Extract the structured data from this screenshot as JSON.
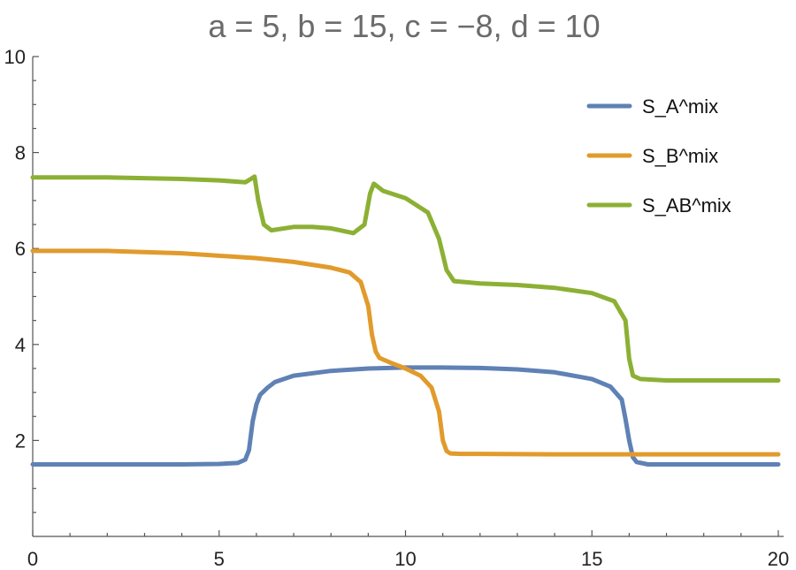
{
  "chart_data": {
    "type": "line",
    "title": "a = 5, b = 15, c = −8, d = 10",
    "xlabel": "",
    "ylabel": "",
    "xlim": [
      0,
      20
    ],
    "ylim": [
      0,
      10
    ],
    "x_ticks": [
      0,
      5,
      10,
      15,
      20
    ],
    "y_ticks": [
      2,
      4,
      6,
      8,
      10
    ],
    "grid": false,
    "legend_position": "top-right",
    "series": [
      {
        "name": "S_A^mix",
        "color": "#5f81b5",
        "x": [
          0,
          2,
          4,
          5,
          5.5,
          5.7,
          5.8,
          5.9,
          6.0,
          6.1,
          6.3,
          6.5,
          7,
          8,
          9,
          10,
          11,
          12,
          13,
          14,
          15,
          15.5,
          15.8,
          15.9,
          16.0,
          16.1,
          16.2,
          16.5,
          17,
          18,
          19,
          20
        ],
        "y": [
          1.5,
          1.5,
          1.5,
          1.51,
          1.53,
          1.6,
          1.8,
          2.4,
          2.75,
          2.95,
          3.1,
          3.22,
          3.35,
          3.45,
          3.5,
          3.52,
          3.52,
          3.51,
          3.48,
          3.42,
          3.28,
          3.12,
          2.85,
          2.45,
          2.0,
          1.65,
          1.55,
          1.5,
          1.5,
          1.5,
          1.5,
          1.5
        ]
      },
      {
        "name": "S_B^mix",
        "color": "#e19b2c",
        "x": [
          0,
          2,
          4,
          6,
          7,
          8,
          8.5,
          8.8,
          9.0,
          9.1,
          9.2,
          9.3,
          9.6,
          10,
          10.4,
          10.7,
          10.9,
          11.0,
          11.1,
          11.2,
          11.5,
          12,
          14,
          16,
          18,
          20
        ],
        "y": [
          5.95,
          5.95,
          5.9,
          5.8,
          5.72,
          5.6,
          5.5,
          5.3,
          4.8,
          4.2,
          3.85,
          3.72,
          3.62,
          3.5,
          3.35,
          3.1,
          2.6,
          2.0,
          1.78,
          1.73,
          1.72,
          1.72,
          1.71,
          1.71,
          1.71,
          1.71
        ]
      },
      {
        "name": "S_AB^mix",
        "color": "#8cb034",
        "x": [
          0,
          2,
          4,
          5,
          5.7,
          5.85,
          5.95,
          6.05,
          6.2,
          6.4,
          7,
          7.5,
          8,
          8.6,
          8.9,
          9.05,
          9.15,
          9.4,
          10,
          10.6,
          10.9,
          11.1,
          11.3,
          12,
          13,
          14,
          15,
          15.6,
          15.9,
          16.0,
          16.1,
          16.3,
          17,
          18,
          20
        ],
        "y": [
          7.48,
          7.48,
          7.45,
          7.42,
          7.38,
          7.45,
          7.5,
          7.0,
          6.5,
          6.38,
          6.45,
          6.45,
          6.42,
          6.32,
          6.5,
          7.15,
          7.35,
          7.2,
          7.05,
          6.75,
          6.2,
          5.55,
          5.32,
          5.27,
          5.24,
          5.18,
          5.07,
          4.9,
          4.5,
          3.7,
          3.35,
          3.28,
          3.25,
          3.25,
          3.25
        ]
      }
    ]
  }
}
